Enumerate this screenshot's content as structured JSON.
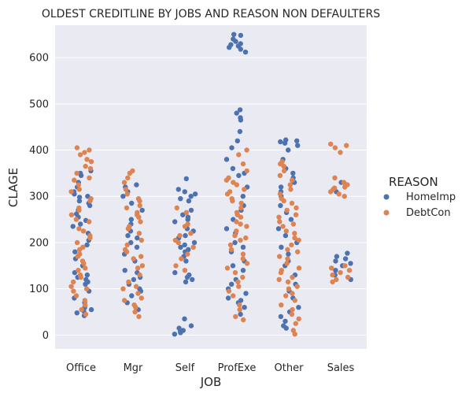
{
  "chart_data": {
    "type": "scatter",
    "subtype": "strip",
    "title": "OLDEST CREDITLINE BY JOBS AND REASON NON DEFAULTERS",
    "xlabel": "JOB",
    "ylabel": "CLAGE",
    "categories": [
      "Office",
      "Mgr",
      "Self",
      "ProfExe",
      "Other",
      "Sales"
    ],
    "ylim": [
      -30,
      670
    ],
    "yticks": [
      0,
      100,
      200,
      300,
      400,
      500,
      600
    ],
    "grid": true,
    "legend": {
      "title": "REASON",
      "placement": "right"
    },
    "series": [
      {
        "name": "HomeImp",
        "color": "#4c72b0",
        "points": {
          "Office": [
            42,
            48,
            52,
            55,
            60,
            70,
            80,
            95,
            110,
            115,
            120,
            125,
            130,
            135,
            150,
            165,
            180,
            195,
            205,
            220,
            235,
            240,
            248,
            255,
            262,
            270,
            280,
            285,
            290,
            298,
            300,
            305,
            310,
            320,
            330,
            345,
            355,
            350
          ],
          "Mgr": [
            55,
            70,
            85,
            95,
            100,
            110,
            120,
            125,
            135,
            140,
            160,
            175,
            190,
            200,
            210,
            215,
            225,
            240,
            250,
            270,
            285,
            300,
            310,
            320,
            325
          ],
          "Self": [
            2,
            5,
            8,
            10,
            15,
            20,
            35,
            115,
            120,
            125,
            130,
            135,
            160,
            170,
            180,
            185,
            190,
            195,
            200,
            210,
            215,
            225,
            230,
            245,
            250,
            255,
            260,
            270,
            290,
            295,
            300,
            305,
            310,
            315,
            338
          ],
          "ProfExe": [
            45,
            60,
            70,
            75,
            80,
            90,
            100,
            110,
            120,
            140,
            150,
            160,
            180,
            190,
            200,
            220,
            230,
            250,
            270,
            280,
            300,
            320,
            345,
            350,
            360,
            380,
            405,
            420,
            440,
            465,
            470,
            480,
            487,
            612,
            618,
            622,
            625,
            628,
            630,
            635,
            640,
            648,
            650
          ],
          "Other": [
            15,
            20,
            30,
            40,
            50,
            60,
            80,
            95,
            110,
            130,
            150,
            160,
            175,
            190,
            200,
            215,
            230,
            250,
            265,
            280,
            300,
            310,
            320,
            330,
            340,
            350,
            360,
            380,
            400,
            410,
            415,
            418,
            420,
            422
          ],
          "Sales": [
            120,
            130,
            140,
            150,
            155,
            160,
            165,
            170,
            177,
            310,
            330
          ]
        }
      },
      {
        "name": "DebtCon",
        "color": "#dd8452",
        "points": {
          "Office": [
            45,
            55,
            65,
            75,
            85,
            95,
            100,
            105,
            115,
            125,
            130,
            140,
            145,
            155,
            160,
            170,
            175,
            185,
            190,
            200,
            210,
            215,
            225,
            230,
            245,
            250,
            260,
            270,
            275,
            290,
            295,
            310,
            315,
            325,
            335,
            340,
            350,
            360,
            365,
            375,
            380,
            390,
            395,
            400,
            405
          ],
          "Mgr": [
            40,
            50,
            60,
            65,
            75,
            80,
            90,
            100,
            105,
            115,
            130,
            145,
            150,
            165,
            170,
            180,
            185,
            195,
            205,
            220,
            230,
            235,
            245,
            255,
            260,
            265,
            275,
            280,
            290,
            295,
            305,
            315,
            330,
            340,
            350,
            355
          ],
          "Self": [
            140,
            150,
            165,
            175,
            190,
            200,
            205,
            215,
            220,
            235,
            240,
            265,
            275
          ],
          "ProfExe": [
            33,
            40,
            55,
            65,
            85,
            95,
            105,
            115,
            125,
            135,
            145,
            155,
            165,
            175,
            185,
            195,
            205,
            210,
            215,
            225,
            235,
            240,
            245,
            255,
            260,
            265,
            275,
            285,
            290,
            295,
            305,
            310,
            315,
            325,
            330,
            335,
            340,
            355,
            370,
            390,
            400
          ],
          "Other": [
            2,
            10,
            25,
            35,
            45,
            55,
            65,
            75,
            85,
            90,
            100,
            105,
            115,
            120,
            125,
            135,
            140,
            145,
            155,
            165,
            170,
            180,
            185,
            195,
            205,
            210,
            220,
            225,
            235,
            240,
            245,
            255,
            260,
            270,
            275,
            285,
            290,
            295,
            305,
            315,
            325,
            335,
            345,
            355,
            365,
            370,
            375
          ],
          "Sales": [
            115,
            120,
            125,
            130,
            135,
            140,
            145,
            150,
            300,
            305,
            310,
            315,
            318,
            320,
            325,
            330,
            340,
            395,
            405,
            410,
            413
          ]
        }
      }
    ]
  }
}
